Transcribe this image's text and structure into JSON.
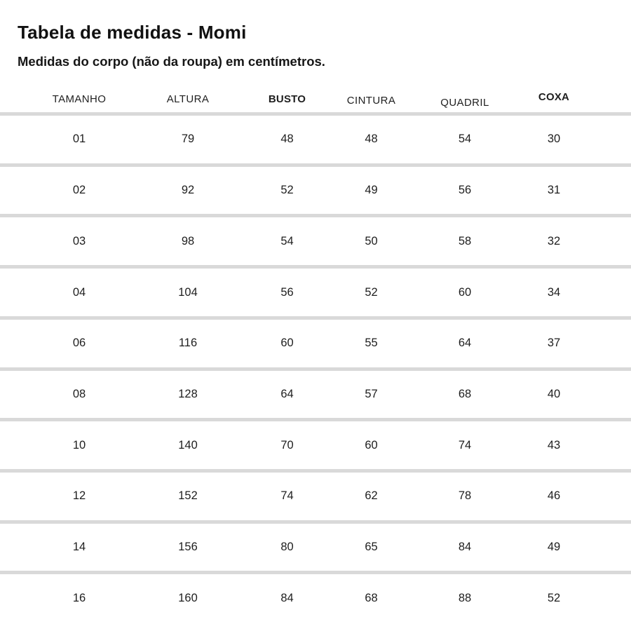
{
  "page": {
    "title": "Tabela de medidas - Momi",
    "subtitle": "Medidas do corpo (não da roupa) em centímetros."
  },
  "chart_data": {
    "type": "table",
    "title": "Tabela de medidas - Momi",
    "subtitle": "Medidas do corpo (não da roupa) em centímetros.",
    "columns": [
      "TAMANHO",
      "ALTURA",
      "BUSTO",
      "CINTURA",
      "QUADRIL",
      "COXA"
    ],
    "bold_columns": [
      "BUSTO",
      "COXA"
    ],
    "rows": [
      [
        "01",
        "79",
        "48",
        "48",
        "54",
        "30"
      ],
      [
        "02",
        "92",
        "52",
        "49",
        "56",
        "31"
      ],
      [
        "03",
        "98",
        "54",
        "50",
        "58",
        "32"
      ],
      [
        "04",
        "104",
        "56",
        "52",
        "60",
        "34"
      ],
      [
        "06",
        "116",
        "60",
        "55",
        "64",
        "37"
      ],
      [
        "08",
        "128",
        "64",
        "57",
        "68",
        "40"
      ],
      [
        "10",
        "140",
        "70",
        "60",
        "74",
        "43"
      ],
      [
        "12",
        "152",
        "74",
        "62",
        "78",
        "46"
      ],
      [
        "14",
        "156",
        "80",
        "65",
        "84",
        "49"
      ],
      [
        "16",
        "160",
        "84",
        "68",
        "88",
        "52"
      ]
    ],
    "colors": {
      "background": "#ffffff",
      "text": "#1a1a1a",
      "divider": "#d9d9d9"
    },
    "layout_hints": {
      "grid": "horizontal dividers only",
      "last_row_has_no_bottom_border": true
    }
  }
}
